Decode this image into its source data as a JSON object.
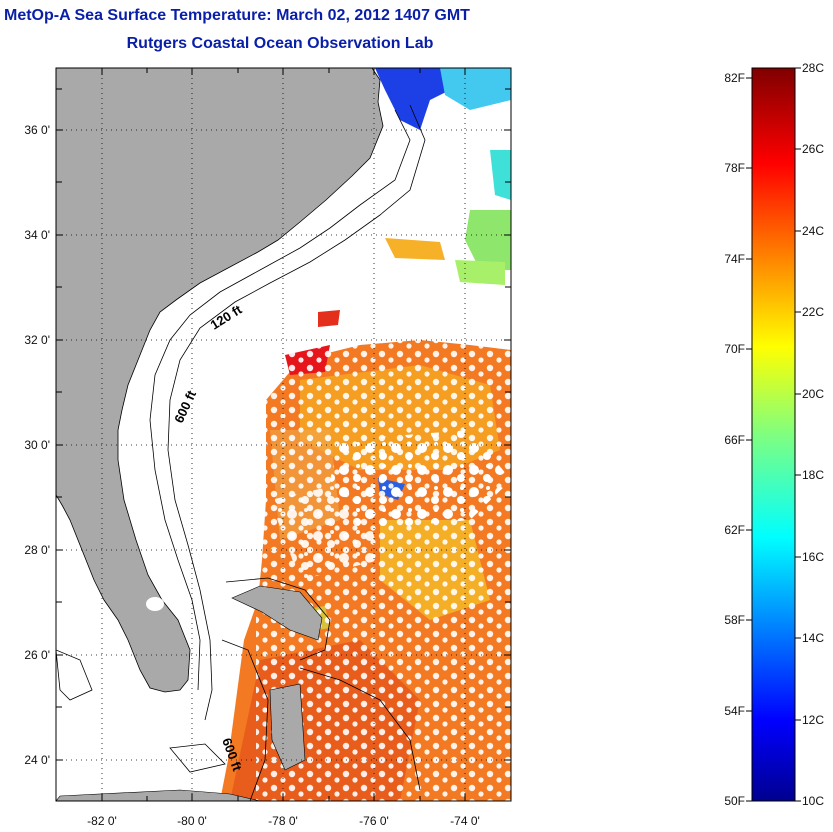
{
  "title": "MetOp-A Sea Surface Temperature:  March 02, 2012 1407 GMT",
  "subtitle": "Rutgers Coastal Ocean Observation Lab",
  "map": {
    "lat_range": [
      23.1,
      37.1
    ],
    "lon_range": [
      -82.9,
      -72.9
    ],
    "lat_ticks": [
      "36 0'",
      "34 0'",
      "32 0'",
      "30 0'",
      "28 0'",
      "26 0'",
      "24 0'"
    ],
    "lon_ticks": [
      "-82 0'",
      "-80 0'",
      "-78 0'",
      "-76 0'",
      "-74 0'"
    ],
    "contour_labels": [
      "120 ft",
      "600 ft",
      "600 ft"
    ],
    "grid": "dotted",
    "land_color": "#a9a9a9",
    "coast_color": "#000000"
  },
  "colorbar": {
    "fahrenheit_labels": [
      "82F",
      "78F",
      "74F",
      "70F",
      "66F",
      "62F",
      "58F",
      "54F",
      "50F"
    ],
    "celsius_labels": [
      "28C",
      "26C",
      "24C",
      "22C",
      "20C",
      "18C",
      "16C",
      "14C",
      "12C",
      "10C"
    ],
    "range_c": [
      10,
      28
    ],
    "colormap": "jet"
  }
}
